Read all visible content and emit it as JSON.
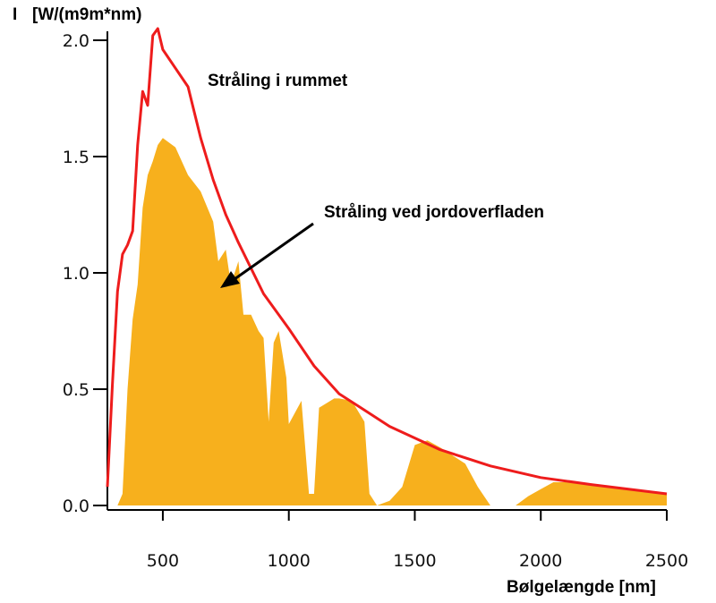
{
  "chart_data": {
    "type": "area",
    "ylabel_mark": "I",
    "ylabel": "[W/(m9m*nm)",
    "xlabel": "Bølgelængde [nm]",
    "xlim": [
      280,
      2500
    ],
    "ylim": [
      0,
      2.0
    ],
    "x_ticks": [
      500,
      1000,
      1500,
      2000,
      2500
    ],
    "x_tick_labels": [
      "500",
      "1000",
      "1500",
      "2000",
      "2500"
    ],
    "y_ticks": [
      0.0,
      0.5,
      1.0,
      1.5,
      2.0
    ],
    "y_tick_labels": [
      "0.0",
      "0.5",
      "1.0",
      "1.5",
      "2.0"
    ],
    "grid": false,
    "annotations": {
      "space": "Stråling i rummet",
      "surface": "Stråling ved jordoverfladen"
    },
    "series": [
      {
        "label": "Stråling i rummet",
        "color": "#ee1c1c",
        "style": "line",
        "x": [
          280,
          300,
          320,
          340,
          360,
          380,
          400,
          420,
          440,
          460,
          480,
          500,
          550,
          600,
          650,
          700,
          750,
          800,
          900,
          1000,
          1100,
          1200,
          1300,
          1400,
          1500,
          1600,
          1800,
          2000,
          2200,
          2500
        ],
        "y": [
          0.08,
          0.52,
          0.92,
          1.08,
          1.12,
          1.18,
          1.55,
          1.78,
          1.72,
          2.02,
          2.05,
          1.96,
          1.88,
          1.8,
          1.58,
          1.4,
          1.25,
          1.13,
          0.91,
          0.76,
          0.6,
          0.48,
          0.41,
          0.34,
          0.29,
          0.24,
          0.17,
          0.12,
          0.09,
          0.05
        ]
      },
      {
        "label": "Stråling ved jordoverfladen",
        "color": "#f7b01d",
        "style": "area",
        "x": [
          280,
          300,
          320,
          340,
          360,
          380,
          400,
          420,
          440,
          460,
          480,
          500,
          550,
          600,
          650,
          700,
          720,
          750,
          770,
          800,
          820,
          850,
          880,
          900,
          920,
          940,
          960,
          990,
          1000,
          1050,
          1080,
          1100,
          1120,
          1150,
          1180,
          1200,
          1250,
          1300,
          1320,
          1350,
          1400,
          1450,
          1500,
          1550,
          1600,
          1700,
          1750,
          1800,
          1850,
          1900,
          1950,
          2000,
          2050,
          2100,
          2200,
          2300,
          2400,
          2500
        ],
        "y": [
          0.0,
          0.0,
          0.0,
          0.05,
          0.5,
          0.8,
          0.95,
          1.28,
          1.42,
          1.48,
          1.55,
          1.58,
          1.54,
          1.42,
          1.35,
          1.22,
          1.05,
          1.1,
          0.95,
          1.05,
          0.82,
          0.82,
          0.75,
          0.72,
          0.36,
          0.7,
          0.75,
          0.55,
          0.35,
          0.45,
          0.05,
          0.05,
          0.42,
          0.44,
          0.46,
          0.46,
          0.45,
          0.36,
          0.05,
          0.0,
          0.02,
          0.08,
          0.26,
          0.28,
          0.25,
          0.18,
          0.08,
          0.0,
          0.0,
          0.0,
          0.04,
          0.07,
          0.1,
          0.1,
          0.09,
          0.08,
          0.06,
          0.05
        ]
      }
    ]
  }
}
